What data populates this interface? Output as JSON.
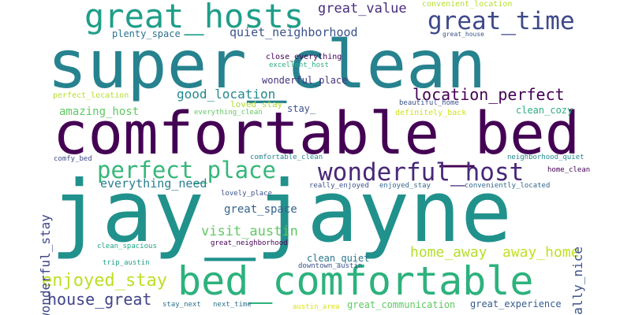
{
  "words": [
    {
      "text": "super_clean",
      "color": "#26828e"
    },
    {
      "text": "jay_jayne",
      "color": "#21918c"
    },
    {
      "text": "comfortable_bed",
      "color": "#440154"
    },
    {
      "text": "bed_comfortable",
      "color": "#2db27d"
    },
    {
      "text": "great_hosts",
      "color": "#1f9e89"
    },
    {
      "text": "great_time",
      "color": "#3e4989"
    },
    {
      "text": "wonderful_host",
      "color": "#482878"
    },
    {
      "text": "perfect_place",
      "color": "#35b779"
    },
    {
      "text": "location_perfect",
      "color": "#440154"
    },
    {
      "text": "enjoyed_stay",
      "color": "#bddf26"
    },
    {
      "text": "house_great",
      "color": "#414487"
    },
    {
      "text": "home_away",
      "color": "#b5de2b"
    },
    {
      "text": "away_home",
      "color": "#c2df23"
    },
    {
      "text": "great_value",
      "color": "#472d7b"
    },
    {
      "text": "quiet_neighborhood",
      "color": "#3b528b"
    },
    {
      "text": "good_location",
      "color": "#23888e"
    },
    {
      "text": "everything_need",
      "color": "#287d8e"
    },
    {
      "text": "visit_austin",
      "color": "#5ec962"
    },
    {
      "text": "great_space",
      "color": "#33638d"
    },
    {
      "text": "wonderful_stay",
      "color": "#3f4788"
    },
    {
      "text": "really_nice",
      "color": "#3b528b"
    },
    {
      "text": "amazing_host",
      "color": "#5ec962"
    },
    {
      "text": "wonderful_place",
      "color": "#46327e"
    },
    {
      "text": "plenty_space",
      "color": "#2c728e"
    },
    {
      "text": "great_experience",
      "color": "#365c8d"
    },
    {
      "text": "great_communication",
      "color": "#5ec962"
    },
    {
      "text": "clean_quiet",
      "color": "#2a788e"
    },
    {
      "text": "stay_",
      "color": "#3b528b"
    },
    {
      "text": "loved_stay",
      "color": "#addc30"
    },
    {
      "text": "clean_cozy",
      "color": "#29af7f"
    },
    {
      "text": "close_everything",
      "color": "#440154"
    },
    {
      "text": "excellent_host",
      "color": "#29af7f"
    },
    {
      "text": "perfect_location",
      "color": "#b5de2b"
    },
    {
      "text": "everything_clean",
      "color": "#5ec962"
    },
    {
      "text": "definitely_back",
      "color": "#d0e11c"
    },
    {
      "text": "beautiful_home",
      "color": "#3b528b"
    },
    {
      "text": "convenient_location",
      "color": "#b5de2b"
    },
    {
      "text": "great_house",
      "color": "#3b528b"
    },
    {
      "text": "comfy_bed",
      "color": "#3e4989"
    },
    {
      "text": "comfortable_clean",
      "color": "#26828e"
    },
    {
      "text": "neighborhood_quiet",
      "color": "#23888e"
    },
    {
      "text": "home_clean",
      "color": "#440154"
    },
    {
      "text": "lovely_place",
      "color": "#3b528b"
    },
    {
      "text": "really_enjoyed",
      "color": "#3b528b"
    },
    {
      "text": "enjoyed_stay",
      "color": "#31688e"
    },
    {
      "text": "conveniently_located",
      "color": "#31688e"
    },
    {
      "text": "clean_spacious",
      "color": "#21a585"
    },
    {
      "text": "great_neighborhood",
      "color": "#440154"
    },
    {
      "text": "trip_austin",
      "color": "#1f9e89"
    },
    {
      "text": "downtown_austin",
      "color": "#3b528b"
    },
    {
      "text": "stay_next",
      "color": "#2c728e"
    },
    {
      "text": "next_time",
      "color": "#2c728e"
    },
    {
      "text": "austin_area",
      "color": "#d8e219"
    }
  ]
}
